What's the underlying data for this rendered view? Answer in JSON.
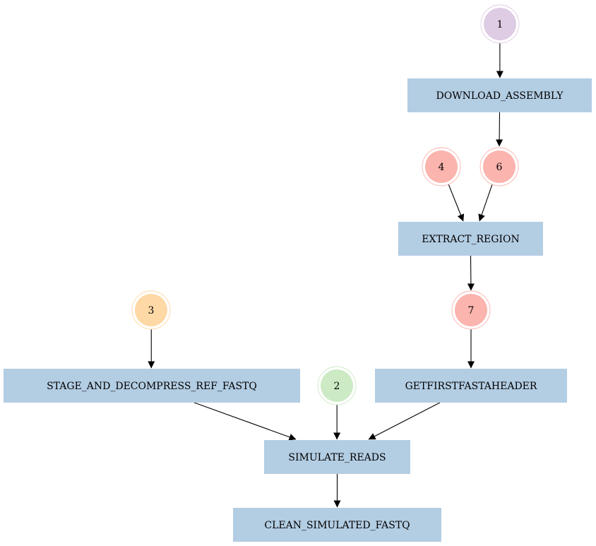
{
  "colors": {
    "process_fill": "#b3cde3",
    "input_purple": "#decbe4",
    "input_red": "#fbb4ae",
    "input_orange": "#fed9a6",
    "input_green": "#ccebc5"
  },
  "inputs": [
    {
      "id": "in1",
      "label": "1",
      "color": "#decbe4"
    },
    {
      "id": "in4",
      "label": "4",
      "color": "#fbb4ae"
    },
    {
      "id": "in6",
      "label": "6",
      "color": "#fbb4ae"
    },
    {
      "id": "in7",
      "label": "7",
      "color": "#fbb4ae"
    },
    {
      "id": "in3",
      "label": "3",
      "color": "#fed9a6"
    },
    {
      "id": "in2",
      "label": "2",
      "color": "#ccebc5"
    }
  ],
  "processes": [
    {
      "id": "download",
      "label": "DOWNLOAD_ASSEMBLY"
    },
    {
      "id": "extract",
      "label": "EXTRACT_REGION"
    },
    {
      "id": "stage",
      "label": "STAGE_AND_DECOMPRESS_REF_FASTQ"
    },
    {
      "id": "getfirst",
      "label": "GETFIRSTFASTAHEADER"
    },
    {
      "id": "simulate",
      "label": "SIMULATE_READS"
    },
    {
      "id": "clean",
      "label": "CLEAN_SIMULATED_FASTQ"
    }
  ],
  "edges": [
    {
      "from": "in1",
      "to": "download"
    },
    {
      "from": "download",
      "to": "in6"
    },
    {
      "from": "in4",
      "to": "extract"
    },
    {
      "from": "in6",
      "to": "extract"
    },
    {
      "from": "extract",
      "to": "in7"
    },
    {
      "from": "in7",
      "to": "getfirst"
    },
    {
      "from": "in3",
      "to": "stage"
    },
    {
      "from": "stage",
      "to": "simulate"
    },
    {
      "from": "in2",
      "to": "simulate"
    },
    {
      "from": "getfirst",
      "to": "simulate"
    },
    {
      "from": "simulate",
      "to": "clean"
    }
  ]
}
